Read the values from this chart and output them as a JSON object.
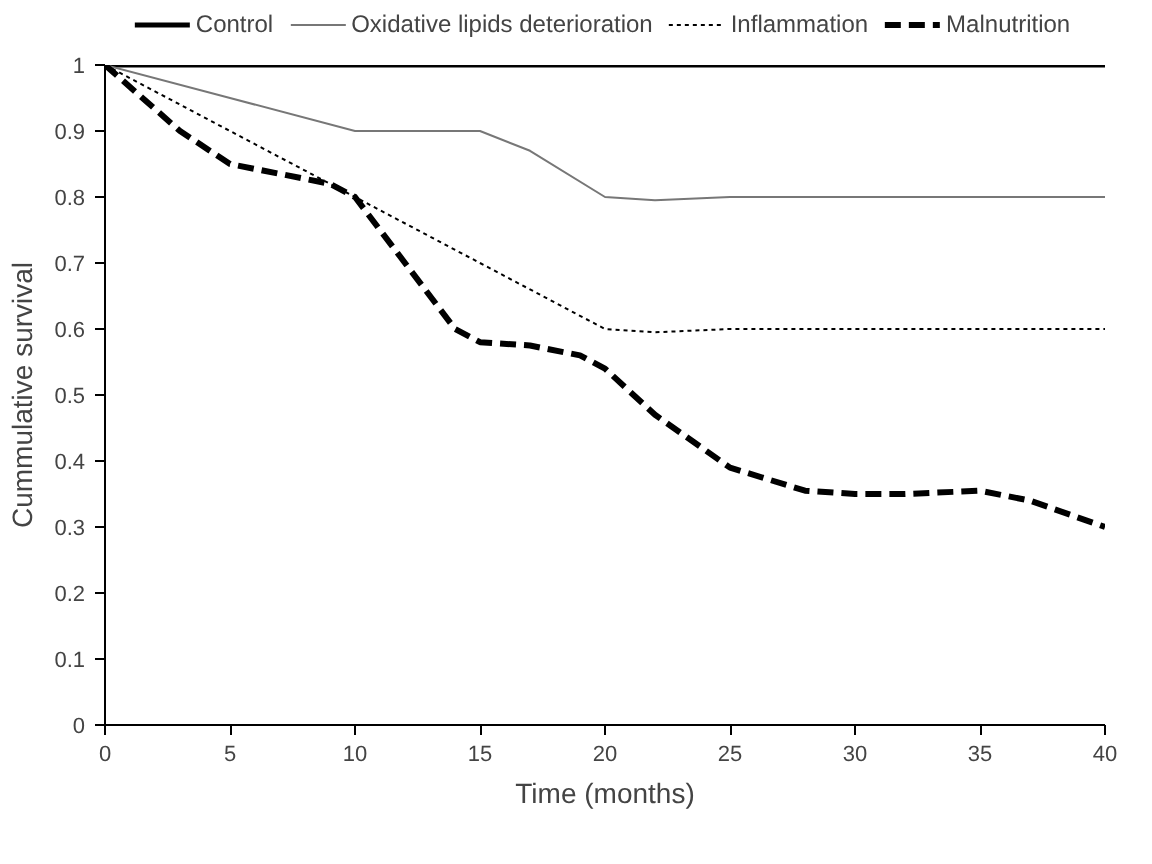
{
  "chart_data": {
    "type": "line",
    "xlabel": "Time (months)",
    "ylabel": "Cummulative survival",
    "xlim": [
      0,
      40
    ],
    "xticks": [
      0,
      5,
      10,
      15,
      20,
      25,
      30,
      35,
      40
    ],
    "ylim": [
      0,
      1
    ],
    "yticks": [
      0,
      0.1,
      0.2,
      0.3,
      0.4,
      0.5,
      0.6,
      0.7,
      0.8,
      0.9,
      1
    ],
    "grid": false,
    "legend": "top",
    "marker": "none",
    "series": [
      {
        "name": "Control",
        "color": "#000000",
        "line_style": "solid",
        "x": [
          0,
          40
        ],
        "values": [
          1,
          1
        ]
      },
      {
        "name": "Oxidative lipids deterioration",
        "color": "#777777",
        "line_style": "solid",
        "x": [
          0,
          5,
          10,
          12,
          15,
          17,
          20,
          22,
          25,
          30,
          35,
          40
        ],
        "values": [
          1,
          0.95,
          0.9,
          0.9,
          0.9,
          0.87,
          0.8,
          0.795,
          0.8,
          0.8,
          0.8,
          0.8
        ]
      },
      {
        "name": "Inflammation",
        "color": "#000000",
        "line_style": "dotted",
        "x": [
          0,
          5,
          10,
          15,
          20,
          22,
          25,
          30,
          35,
          40
        ],
        "values": [
          1,
          0.9,
          0.8,
          0.7,
          0.6,
          0.595,
          0.6,
          0.6,
          0.6,
          0.6
        ]
      },
      {
        "name": "Malnutrition",
        "color": "#000000",
        "line_style": "dashed",
        "x": [
          0,
          3,
          5,
          7,
          9,
          10,
          12,
          14,
          15,
          17,
          19,
          20,
          22,
          25,
          28,
          30,
          32,
          35,
          37,
          40
        ],
        "values": [
          1,
          0.9,
          0.85,
          0.835,
          0.82,
          0.8,
          0.7,
          0.6,
          0.58,
          0.575,
          0.56,
          0.54,
          0.47,
          0.39,
          0.355,
          0.35,
          0.35,
          0.355,
          0.34,
          0.3
        ]
      }
    ]
  }
}
